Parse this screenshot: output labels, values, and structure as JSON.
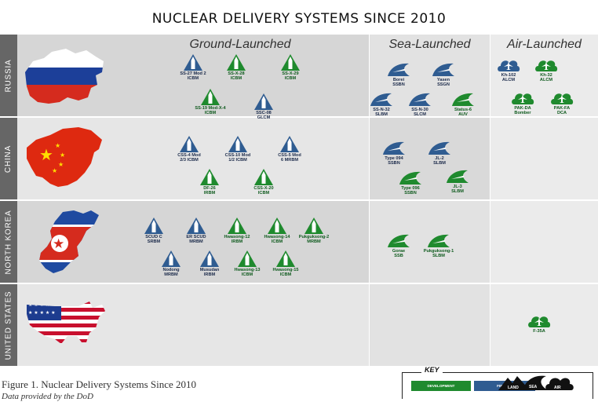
{
  "title": "NUCLEAR DELIVERY SYSTEMS SINCE 2010",
  "columns": {
    "ground": "Ground-Launched",
    "sea": "Sea-Launched",
    "air": "Air-Launched"
  },
  "countries": {
    "russia": "RUSSIA",
    "china": "CHINA",
    "north_korea": "NORTH KOREA",
    "united_states": "UNITED STATES"
  },
  "colors": {
    "development": "#1f8a2e",
    "fielded": "#2f5c91",
    "row_light": "#e9e9e9",
    "row_mid": "#d6d6d6",
    "sidebar": "#666666"
  },
  "systems": [
    {
      "label": "SS-27 Mod 2\nICBM",
      "status": "fielded",
      "type": "land"
    },
    {
      "label": "SS-X-28\nICBM",
      "status": "development",
      "type": "land"
    },
    {
      "label": "SS-X-29\nICBM",
      "status": "development",
      "type": "land"
    },
    {
      "label": "SS-19 Mod-X-4\nICBM",
      "status": "development",
      "type": "land"
    },
    {
      "label": "SSC-08\nGLCM",
      "status": "fielded",
      "type": "land"
    },
    {
      "label": "Borei\nSSBN",
      "status": "fielded",
      "type": "sea"
    },
    {
      "label": "Yasen\nSSGN",
      "status": "fielded",
      "type": "sea"
    },
    {
      "label": "SS-N-32\nSLBM",
      "status": "fielded",
      "type": "sea"
    },
    {
      "label": "SS-N-30\nSLCM",
      "status": "fielded",
      "type": "sea"
    },
    {
      "label": "Status-6\nAUV",
      "status": "development",
      "type": "sea"
    },
    {
      "label": "Kh-102\nALCM",
      "status": "fielded",
      "type": "air"
    },
    {
      "label": "Kh-32\nALCM",
      "status": "development",
      "type": "air"
    },
    {
      "label": "PAK-DA\nBomber",
      "status": "development",
      "type": "air"
    },
    {
      "label": "PAK-FA\nDCA",
      "status": "development",
      "type": "air"
    },
    {
      "label": "CSS-4 Mod\n2/3 ICBM",
      "status": "fielded",
      "type": "land"
    },
    {
      "label": "CSS-10 Mod\n1/2 ICBM",
      "status": "fielded",
      "type": "land"
    },
    {
      "label": "CSS-5 Mod\n6 MRBM",
      "status": "fielded",
      "type": "land"
    },
    {
      "label": "DF-26\nIRBM",
      "status": "development",
      "type": "land"
    },
    {
      "label": "CSS-X-20\nICBM",
      "status": "development",
      "type": "land"
    },
    {
      "label": "Type 094\nSSBN",
      "status": "fielded",
      "type": "sea"
    },
    {
      "label": "JL-2\nSLBM",
      "status": "fielded",
      "type": "sea"
    },
    {
      "label": "Type 096\nSSBN",
      "status": "development",
      "type": "sea"
    },
    {
      "label": "JL-3\nSLBM",
      "status": "development",
      "type": "sea"
    },
    {
      "label": "SCUD C\nSRBM",
      "status": "fielded",
      "type": "land"
    },
    {
      "label": "ER SCUD\nMRBM",
      "status": "fielded",
      "type": "land"
    },
    {
      "label": "Hwasong-12\nIRBM",
      "status": "development",
      "type": "land"
    },
    {
      "label": "Hwasong-14\nICBM",
      "status": "development",
      "type": "land"
    },
    {
      "label": "Pukguksong-2\nMRBM",
      "status": "development",
      "type": "land"
    },
    {
      "label": "Nodong\nMRBM",
      "status": "fielded",
      "type": "land"
    },
    {
      "label": "Musudan\nIRBM",
      "status": "fielded",
      "type": "land"
    },
    {
      "label": "Hwasong-13\nICBM",
      "status": "development",
      "type": "land"
    },
    {
      "label": "Hwasong-15\nICBM",
      "status": "development",
      "type": "land"
    },
    {
      "label": "Gorae\nSSB",
      "status": "development",
      "type": "sea"
    },
    {
      "label": "Pukguksong-1\nSLBM",
      "status": "development",
      "type": "sea"
    },
    {
      "label": "F-35A",
      "status": "development",
      "type": "air"
    }
  ],
  "caption": "Figure 1. Nuclear Delivery Systems Since 2010",
  "source": "Data provided by the DoD",
  "key": {
    "title": "KEY",
    "development": "DEVELOPMENT",
    "fielded": "FIELDED",
    "land": "LAND",
    "sea": "SEA",
    "air": "AIR"
  }
}
